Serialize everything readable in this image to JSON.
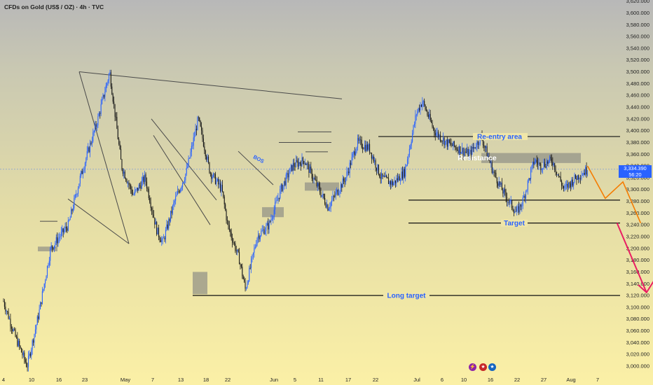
{
  "header": {
    "title": "CFDs on Gold (US$ / OZ) · 4h · TVC"
  },
  "price_tag": {
    "price": "3,334.390",
    "countdown": "56:20"
  },
  "chart_data": {
    "type": "candlestick",
    "symbol": "CFDs on Gold (US$ / OZ)",
    "timeframe": "4h",
    "source": "TVC",
    "last_price": 3334.39,
    "ylim": [
      2990,
      3627
    ],
    "y_ticks": [
      "3,000.000",
      "3,020.000",
      "3,040.000",
      "3,060.000",
      "3,080.000",
      "3,100.000",
      "3,120.000",
      "3,140.000",
      "3,160.000",
      "3,180.000",
      "3,200.000",
      "3,220.000",
      "3,240.000",
      "3,260.000",
      "3,280.000",
      "3,300.000",
      "3,320.000",
      "3,340.000",
      "3,360.000",
      "3,380.000",
      "3,400.000",
      "3,420.000",
      "3,440.000",
      "3,460.000",
      "3,480.000",
      "3,500.000",
      "3,520.000",
      "3,540.000",
      "3,560.000",
      "3,580.000",
      "3,600.000",
      "3,620.000"
    ],
    "x_ticks": [
      "4",
      "10",
      "16",
      "23",
      "May",
      "7",
      "13",
      "18",
      "22",
      "Jun",
      "5",
      "11",
      "17",
      "22",
      "Jul",
      "6",
      "10",
      "16",
      "22",
      "27",
      "Aug",
      "7"
    ],
    "price_path": [
      {
        "date": "2025-04-04",
        "price": 3110
      },
      {
        "date": "2025-04-06",
        "price": 3050
      },
      {
        "date": "2025-04-08",
        "price": 3000
      },
      {
        "date": "2025-04-10",
        "price": 3090
      },
      {
        "date": "2025-04-12",
        "price": 3200
      },
      {
        "date": "2025-04-15",
        "price": 3240
      },
      {
        "date": "2025-04-17",
        "price": 3320
      },
      {
        "date": "2025-04-20",
        "price": 3420
      },
      {
        "date": "2025-04-22",
        "price": 3500
      },
      {
        "date": "2025-04-24",
        "price": 3340
      },
      {
        "date": "2025-04-26",
        "price": 3290
      },
      {
        "date": "2025-04-28",
        "price": 3320
      },
      {
        "date": "2025-04-30",
        "price": 3230
      },
      {
        "date": "2025-05-01",
        "price": 3210
      },
      {
        "date": "2025-05-03",
        "price": 3280
      },
      {
        "date": "2025-05-05",
        "price": 3330
      },
      {
        "date": "2025-05-07",
        "price": 3420
      },
      {
        "date": "2025-05-09",
        "price": 3330
      },
      {
        "date": "2025-05-11",
        "price": 3300
      },
      {
        "date": "2025-05-12",
        "price": 3240
      },
      {
        "date": "2025-05-14",
        "price": 3180
      },
      {
        "date": "2025-05-15",
        "price": 3130
      },
      {
        "date": "2025-05-17",
        "price": 3220
      },
      {
        "date": "2025-05-19",
        "price": 3240
      },
      {
        "date": "2025-05-21",
        "price": 3300
      },
      {
        "date": "2025-05-23",
        "price": 3340
      },
      {
        "date": "2025-05-25",
        "price": 3350
      },
      {
        "date": "2025-05-27",
        "price": 3310
      },
      {
        "date": "2025-05-29",
        "price": 3270
      },
      {
        "date": "2025-06-01",
        "price": 3320
      },
      {
        "date": "2025-06-03",
        "price": 3380
      },
      {
        "date": "2025-06-05",
        "price": 3370
      },
      {
        "date": "2025-06-07",
        "price": 3320
      },
      {
        "date": "2025-06-09",
        "price": 3310
      },
      {
        "date": "2025-06-11",
        "price": 3330
      },
      {
        "date": "2025-06-13",
        "price": 3430
      },
      {
        "date": "2025-06-14",
        "price": 3450
      },
      {
        "date": "2025-06-16",
        "price": 3400
      },
      {
        "date": "2025-06-18",
        "price": 3380
      },
      {
        "date": "2025-06-20",
        "price": 3370
      },
      {
        "date": "2025-06-22",
        "price": 3360
      },
      {
        "date": "2025-06-24",
        "price": 3390
      },
      {
        "date": "2025-06-26",
        "price": 3330
      },
      {
        "date": "2025-06-28",
        "price": 3290
      },
      {
        "date": "2025-06-30",
        "price": 3260
      },
      {
        "date": "2025-07-01",
        "price": 3280
      },
      {
        "date": "2025-07-03",
        "price": 3350
      },
      {
        "date": "2025-07-04",
        "price": 3340
      },
      {
        "date": "2025-07-06",
        "price": 3350
      },
      {
        "date": "2025-07-08",
        "price": 3300
      },
      {
        "date": "2025-07-10",
        "price": 3320
      },
      {
        "date": "2025-07-12",
        "price": 3334
      }
    ],
    "annotations": {
      "reentry": {
        "label": "Re-entry area",
        "price": 3390,
        "color": "#2962ff"
      },
      "resistance": {
        "label": "Resistance",
        "price_range": [
          3345,
          3362
        ]
      },
      "target": {
        "label": "Target",
        "price": 3243,
        "color": "#2962ff"
      },
      "long_target": {
        "label": "Long target",
        "price": 3120,
        "color": "#2962ff"
      },
      "bos": {
        "label": "BOS",
        "color": "#2962ff"
      },
      "projection_color": "#f57c00",
      "arrow_color": "#e91e63",
      "support_line_price": 3282,
      "projection_path": [
        {
          "date": "2025-07-12",
          "price": 3340
        },
        {
          "date": "2025-07-15",
          "price": 3285
        },
        {
          "date": "2025-07-18",
          "price": 3313
        },
        {
          "date": "2025-07-21",
          "price": 3243
        }
      ],
      "arrow_path": [
        {
          "date": "2025-07-17",
          "price": 3243
        },
        {
          "date": "2025-07-22",
          "price": 3125
        }
      ]
    },
    "colors": {
      "up": "#2962ff",
      "down": "#1a1a1a"
    }
  }
}
